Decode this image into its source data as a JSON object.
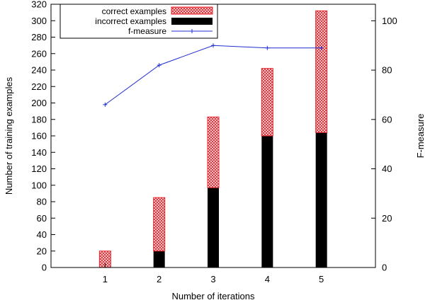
{
  "chart_data": {
    "type": "bar",
    "title": "",
    "xlabel": "Number of iterations",
    "ylabel": "Number of training examples",
    "y2label": "F-measure",
    "categories": [
      "1",
      "2",
      "3",
      "4",
      "5"
    ],
    "ylim": [
      0,
      320
    ],
    "yticks": [
      0,
      20,
      40,
      60,
      80,
      100,
      120,
      140,
      160,
      180,
      200,
      220,
      240,
      260,
      280,
      300,
      320
    ],
    "y2lim": [
      0,
      106.7
    ],
    "y2ticks": [
      0,
      20,
      40,
      60,
      80,
      100
    ],
    "stacked": true,
    "legend_position": "top-left",
    "grid": false,
    "series": [
      {
        "name": "correct examples",
        "kind": "bar",
        "pattern": "crosshatch",
        "color": "#e8242c",
        "values": [
          20,
          65,
          86,
          82,
          148
        ]
      },
      {
        "name": "incorrect examples",
        "kind": "bar",
        "color": "#000000",
        "values": [
          0,
          20,
          97,
          160,
          164
        ]
      },
      {
        "name": "f-measure",
        "kind": "line",
        "axis": "right",
        "color": "#1f2fd0",
        "values": [
          66,
          82,
          90,
          89,
          89
        ]
      }
    ]
  }
}
